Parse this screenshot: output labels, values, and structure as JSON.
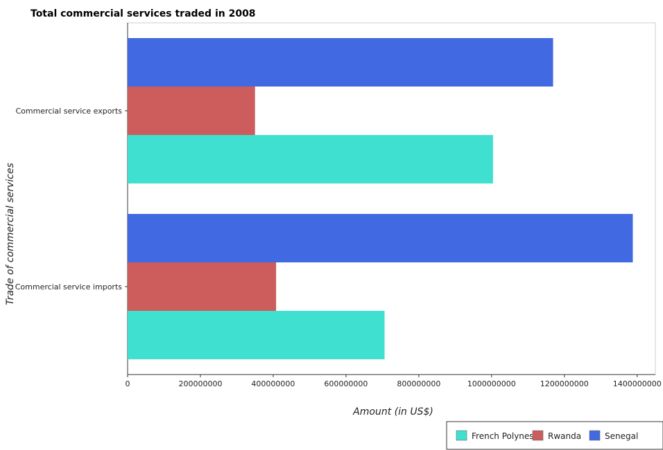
{
  "chart_data": {
    "type": "bar",
    "orientation": "horizontal",
    "title": "Total commercial services traded in 2008",
    "xlabel": "Amount (in US$)",
    "ylabel": "Trade of commercial services",
    "categories": [
      "Commercial service exports",
      "Commercial service imports"
    ],
    "series": [
      {
        "name": "French Polynesia",
        "color": "#40e0d0",
        "values": [
          1004000000,
          706000000
        ]
      },
      {
        "name": "Rwanda",
        "color": "#cd5c5c",
        "values": [
          350000000,
          408000000
        ]
      },
      {
        "name": "Senegal",
        "color": "#4169e1",
        "values": [
          1169000000,
          1388000000
        ]
      }
    ],
    "xlim": [
      0,
      1450000000
    ],
    "xticks": [
      0,
      200000000,
      400000000,
      600000000,
      800000000,
      1000000000,
      1200000000,
      1400000000
    ],
    "xtick_labels": [
      "0",
      "200000000",
      "400000000",
      "600000000",
      "800000000",
      "1000000000",
      "1200000000",
      "1400000000"
    ],
    "grid": false,
    "legend_position": "bottom-right"
  }
}
